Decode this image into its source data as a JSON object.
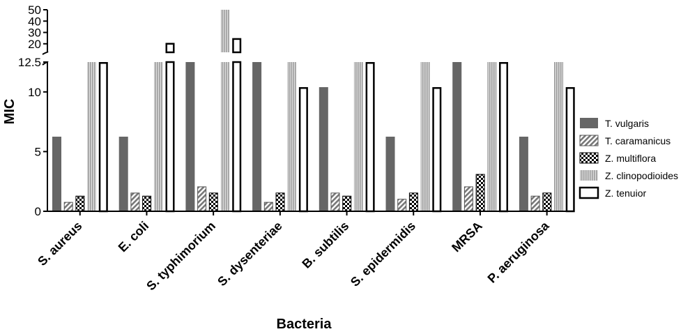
{
  "chart_data": {
    "type": "bar",
    "xlabel": "Bacteria",
    "ylabel": "MIC",
    "categories": [
      "S. aureus",
      "E. coli",
      "S. typhimorium",
      "S. dysenteriae",
      "B. subtilis",
      "S. epidermidis",
      "MRSA",
      "P. aeruginosa"
    ],
    "series": [
      {
        "name": "T. vulgaris",
        "color": "#666666",
        "pattern": "solid",
        "values": [
          6.25,
          6.25,
          12.5,
          12.5,
          10.4,
          6.25,
          12.5,
          6.25
        ]
      },
      {
        "name": "T. caramanicus",
        "color": "#777777",
        "pattern": "hatch",
        "values": [
          0.78,
          1.56,
          2.08,
          0.78,
          1.56,
          1.04,
          2.08,
          1.3
        ]
      },
      {
        "name": "Z. multiflora",
        "color": "#000000",
        "pattern": "checker",
        "values": [
          1.3,
          1.3,
          1.56,
          1.56,
          1.3,
          1.56,
          3.12,
          1.56
        ]
      },
      {
        "name": "Z. clinopodioides",
        "color": "#aaaaaa",
        "pattern": "vertical-lines",
        "values": [
          12.5,
          12.5,
          50,
          12.5,
          12.5,
          12.5,
          12.5,
          12.5
        ]
      },
      {
        "name": "Z. tenuior",
        "color": "#000000",
        "pattern": "outline",
        "values": [
          12.5,
          20.8,
          25,
          10.4,
          12.5,
          10.4,
          12.5,
          10.4
        ]
      }
    ],
    "y_axis": {
      "broken": true,
      "lower_segment": {
        "range": [
          0,
          12.5
        ],
        "ticks": [
          "0",
          "5",
          "10",
          "12.5"
        ]
      },
      "upper_segment": {
        "range": [
          12.5,
          50
        ],
        "ticks": [
          "20",
          "30",
          "40",
          "50"
        ]
      }
    },
    "legend_position": "right",
    "grid": false
  }
}
